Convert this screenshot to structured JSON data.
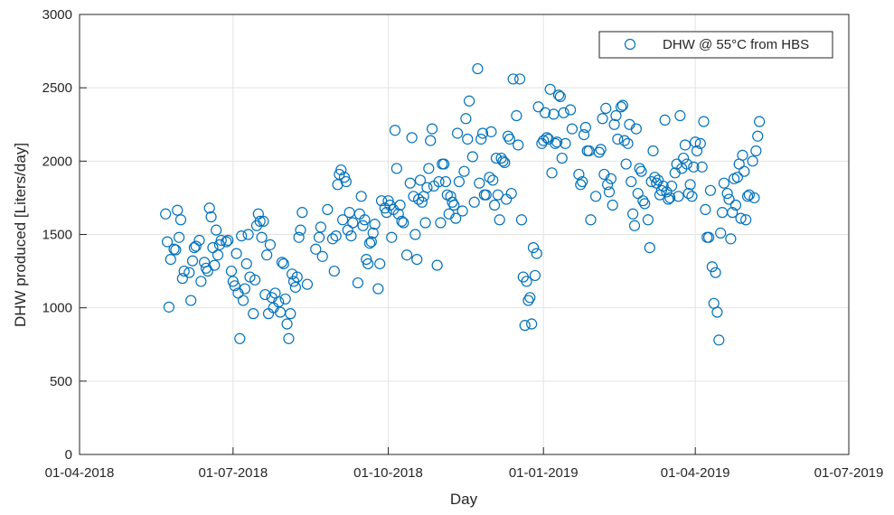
{
  "chart_data": {
    "type": "scatter",
    "x_label": "Day",
    "y_label": "DHW produced [Liters/day]",
    "xlim": [
      "2018-04-01",
      "2019-07-01"
    ],
    "xticks": [
      {
        "value": "2018-04-01",
        "label": "01-04-2018"
      },
      {
        "value": "2018-07-01",
        "label": "01-07-2018"
      },
      {
        "value": "2018-10-01",
        "label": "01-10-2018"
      },
      {
        "value": "2019-01-01",
        "label": "01-01-2019"
      },
      {
        "value": "2019-04-01",
        "label": "01-04-2019"
      },
      {
        "value": "2019-07-01",
        "label": "01-07-2019"
      }
    ],
    "ylim": [
      0,
      3000
    ],
    "yticks": [
      0,
      500,
      1000,
      1500,
      2000,
      2500,
      3000
    ],
    "grid": true,
    "legend": "upper right",
    "x": [
      "2018-05-22",
      "2018-05-23",
      "2018-05-24",
      "2018-05-25",
      "2018-05-27",
      "2018-05-28",
      "2018-05-29",
      "2018-05-30",
      "2018-05-31",
      "2018-06-01",
      "2018-06-02",
      "2018-06-05",
      "2018-06-06",
      "2018-06-07",
      "2018-06-08",
      "2018-06-09",
      "2018-06-11",
      "2018-06-12",
      "2018-06-14",
      "2018-06-15",
      "2018-06-16",
      "2018-06-17",
      "2018-06-18",
      "2018-06-19",
      "2018-06-20",
      "2018-06-21",
      "2018-06-22",
      "2018-06-23",
      "2018-06-24",
      "2018-06-27",
      "2018-06-28",
      "2018-06-30",
      "2018-07-01",
      "2018-07-02",
      "2018-07-03",
      "2018-07-04",
      "2018-07-05",
      "2018-07-06",
      "2018-07-07",
      "2018-07-08",
      "2018-07-09",
      "2018-07-10",
      "2018-07-11",
      "2018-07-13",
      "2018-07-14",
      "2018-07-15",
      "2018-07-16",
      "2018-07-17",
      "2018-07-18",
      "2018-07-19",
      "2018-07-20",
      "2018-07-21",
      "2018-07-22",
      "2018-07-23",
      "2018-07-24",
      "2018-07-25",
      "2018-07-26",
      "2018-07-28",
      "2018-07-29",
      "2018-07-30",
      "2018-07-31",
      "2018-08-01",
      "2018-08-02",
      "2018-08-03",
      "2018-08-04",
      "2018-08-05",
      "2018-08-06",
      "2018-08-07",
      "2018-08-08",
      "2018-08-09",
      "2018-08-10",
      "2018-08-11",
      "2018-08-14",
      "2018-08-19",
      "2018-08-21",
      "2018-08-22",
      "2018-08-23",
      "2018-08-26",
      "2018-08-29",
      "2018-08-30",
      "2018-08-31",
      "2018-09-01",
      "2018-09-02",
      "2018-09-03",
      "2018-09-04",
      "2018-09-05",
      "2018-09-06",
      "2018-09-07",
      "2018-09-08",
      "2018-09-09",
      "2018-09-10",
      "2018-09-13",
      "2018-09-14",
      "2018-09-15",
      "2018-09-16",
      "2018-09-17",
      "2018-09-18",
      "2018-09-19",
      "2018-09-20",
      "2018-09-21",
      "2018-09-22",
      "2018-09-23",
      "2018-09-25",
      "2018-09-26",
      "2018-09-27",
      "2018-09-29",
      "2018-09-30",
      "2018-10-01",
      "2018-10-02",
      "2018-10-03",
      "2018-10-04",
      "2018-10-05",
      "2018-10-06",
      "2018-10-07",
      "2018-10-08",
      "2018-10-09",
      "2018-10-10",
      "2018-10-12",
      "2018-10-14",
      "2018-10-15",
      "2018-10-16",
      "2018-10-17",
      "2018-10-18",
      "2018-10-19",
      "2018-10-20",
      "2018-10-21",
      "2018-10-22",
      "2018-10-23",
      "2018-10-24",
      "2018-10-25",
      "2018-10-26",
      "2018-10-27",
      "2018-10-28",
      "2018-10-30",
      "2018-10-31",
      "2018-11-01",
      "2018-11-02",
      "2018-11-03",
      "2018-11-04",
      "2018-11-05",
      "2018-11-06",
      "2018-11-07",
      "2018-11-08",
      "2018-11-09",
      "2018-11-10",
      "2018-11-11",
      "2018-11-12",
      "2018-11-14",
      "2018-11-15",
      "2018-11-16",
      "2018-11-17",
      "2018-11-18",
      "2018-11-20",
      "2018-11-21",
      "2018-11-23",
      "2018-11-24",
      "2018-11-25",
      "2018-11-26",
      "2018-11-27",
      "2018-11-28",
      "2018-11-30",
      "2018-12-01",
      "2018-12-02",
      "2018-12-03",
      "2018-12-04",
      "2018-12-05",
      "2018-12-06",
      "2018-12-07",
      "2018-12-08",
      "2018-12-09",
      "2018-12-10",
      "2018-12-11",
      "2018-12-12",
      "2018-12-13",
      "2018-12-14",
      "2018-12-16",
      "2018-12-17",
      "2018-12-18",
      "2018-12-19",
      "2018-12-20",
      "2018-12-21",
      "2018-12-22",
      "2018-12-23",
      "2018-12-24",
      "2018-12-25",
      "2018-12-26",
      "2018-12-27",
      "2018-12-28",
      "2018-12-29",
      "2018-12-31",
      "2019-01-01",
      "2019-01-02",
      "2019-01-03",
      "2019-01-04",
      "2019-01-05",
      "2019-01-06",
      "2019-01-07",
      "2019-01-08",
      "2019-01-09",
      "2019-01-10",
      "2019-01-11",
      "2019-01-12",
      "2019-01-13",
      "2019-01-14",
      "2019-01-17",
      "2019-01-18",
      "2019-01-22",
      "2019-01-23",
      "2019-01-24",
      "2019-01-25",
      "2019-01-26",
      "2019-01-27",
      "2019-01-28",
      "2019-01-29",
      "2019-02-01",
      "2019-02-03",
      "2019-02-04",
      "2019-02-05",
      "2019-02-06",
      "2019-02-07",
      "2019-02-08",
      "2019-02-09",
      "2019-02-10",
      "2019-02-11",
      "2019-02-12",
      "2019-02-13",
      "2019-02-14",
      "2019-02-16",
      "2019-02-17",
      "2019-02-18",
      "2019-02-19",
      "2019-02-20",
      "2019-02-21",
      "2019-02-22",
      "2019-02-23",
      "2019-02-24",
      "2019-02-25",
      "2019-02-26",
      "2019-02-27",
      "2019-02-28",
      "2019-03-01",
      "2019-03-02",
      "2019-03-04",
      "2019-03-05",
      "2019-03-06",
      "2019-03-07",
      "2019-03-08",
      "2019-03-09",
      "2019-03-10",
      "2019-03-11",
      "2019-03-12",
      "2019-03-13",
      "2019-03-14",
      "2019-03-15",
      "2019-03-16",
      "2019-03-17",
      "2019-03-18",
      "2019-03-20",
      "2019-03-21",
      "2019-03-22",
      "2019-03-23",
      "2019-03-24",
      "2019-03-25",
      "2019-03-26",
      "2019-03-27",
      "2019-03-28",
      "2019-03-29",
      "2019-03-30",
      "2019-03-31",
      "2019-04-01",
      "2019-04-02",
      "2019-04-04",
      "2019-04-05",
      "2019-04-06",
      "2019-04-07",
      "2019-04-08",
      "2019-04-09",
      "2019-04-10",
      "2019-04-11",
      "2019-04-12",
      "2019-04-13",
      "2019-04-14",
      "2019-04-15",
      "2019-04-16",
      "2019-04-17",
      "2019-04-18",
      "2019-04-20",
      "2019-04-21",
      "2019-04-22",
      "2019-04-23",
      "2019-04-24",
      "2019-04-25",
      "2019-04-26",
      "2019-04-27",
      "2019-04-28",
      "2019-04-29",
      "2019-04-30",
      "2019-05-01",
      "2019-05-02",
      "2019-05-03",
      "2019-05-05",
      "2019-05-06",
      "2019-05-07",
      "2019-05-08",
      "2019-05-09"
    ],
    "series": [
      {
        "name": "DHW @ 55°C from HBS",
        "color": "#0072bd",
        "values": [
          1640,
          1450,
          1005,
          1330,
          1400,
          1395,
          1665,
          1480,
          1600,
          1200,
          1250,
          1240,
          1050,
          1320,
          1410,
          1420,
          1460,
          1180,
          1310,
          1270,
          1250,
          1680,
          1620,
          1410,
          1290,
          1530,
          1360,
          1430,
          1460,
          1450,
          1460,
          1250,
          1180,
          1150,
          1370,
          1100,
          790,
          1490,
          1050,
          1130,
          1300,
          1500,
          1210,
          960,
          1190,
          1560,
          1640,
          1590,
          1480,
          1590,
          1090,
          1360,
          960,
          1430,
          1070,
          1000,
          1100,
          1040,
          970,
          1310,
          1300,
          1060,
          890,
          790,
          960,
          1230,
          1180,
          1140,
          1210,
          1480,
          1530,
          1650,
          1160,
          1400,
          1480,
          1550,
          1350,
          1670,
          1470,
          1250,
          1490,
          1840,
          1910,
          1940,
          1600,
          1890,
          1860,
          1530,
          1650,
          1490,
          1580,
          1170,
          1640,
          1760,
          1560,
          1600,
          1330,
          1300,
          1440,
          1450,
          1510,
          1570,
          1130,
          1300,
          1730,
          1680,
          1650,
          1730,
          1700,
          1480,
          1670,
          2210,
          1950,
          1640,
          1700,
          1590,
          1580,
          1360,
          1850,
          2160,
          1760,
          1500,
          1330,
          1740,
          1870,
          1720,
          1760,
          1580,
          1820,
          1950,
          2140,
          2220,
          1830,
          1290,
          1860,
          1580,
          1980,
          1980,
          1860,
          1770,
          1640,
          1760,
          1720,
          1700,
          1610,
          2190,
          1860,
          1660,
          1930,
          2290,
          2150,
          2410,
          2030,
          1720,
          2630,
          1850,
          2150,
          2190,
          1770,
          1770,
          1890,
          2200,
          1870,
          1700,
          2020,
          1770,
          1600,
          2020,
          2000,
          1990,
          1740,
          2170,
          2150,
          1780,
          2560,
          2310,
          2110,
          2560,
          1600,
          1210,
          880,
          1180,
          1050,
          1070,
          890,
          1410,
          1220,
          1370,
          2370,
          2120,
          2140,
          2330,
          2160,
          2150,
          2490,
          1920,
          2320,
          2120,
          2130,
          2450,
          2440,
          2020,
          2330,
          2120,
          2350,
          2220,
          1910,
          1840,
          1860,
          2180,
          2230,
          2070,
          2070,
          1600,
          1760,
          2060,
          2080,
          2290,
          1910,
          2360,
          1840,
          1790,
          1880,
          1700,
          2250,
          2310,
          2150,
          2370,
          2380,
          2140,
          1980,
          2120,
          2250,
          1860,
          1640,
          1560,
          2220,
          1780,
          1950,
          1930,
          1730,
          1710,
          1600,
          1410,
          1860,
          2070,
          1890,
          1850,
          1870,
          1770,
          1800,
          1830,
          2280,
          1790,
          1740,
          1750,
          1830,
          1920,
          1980,
          1760,
          2310,
          1950,
          2020,
          2110,
          1980,
          1780,
          1840,
          1760,
          1960,
          2130,
          2070,
          2120,
          1960,
          2270,
          1670,
          1480,
          1480,
          1800,
          1280,
          1030,
          1240,
          970,
          780,
          1510,
          1650,
          1850,
          1780,
          1740,
          1470,
          1650,
          1880,
          1700,
          1890,
          1980,
          1610,
          2040,
          1930,
          1600,
          1760,
          1770,
          2000,
          1750,
          2070,
          2170,
          2270
        ]
      }
    ]
  }
}
